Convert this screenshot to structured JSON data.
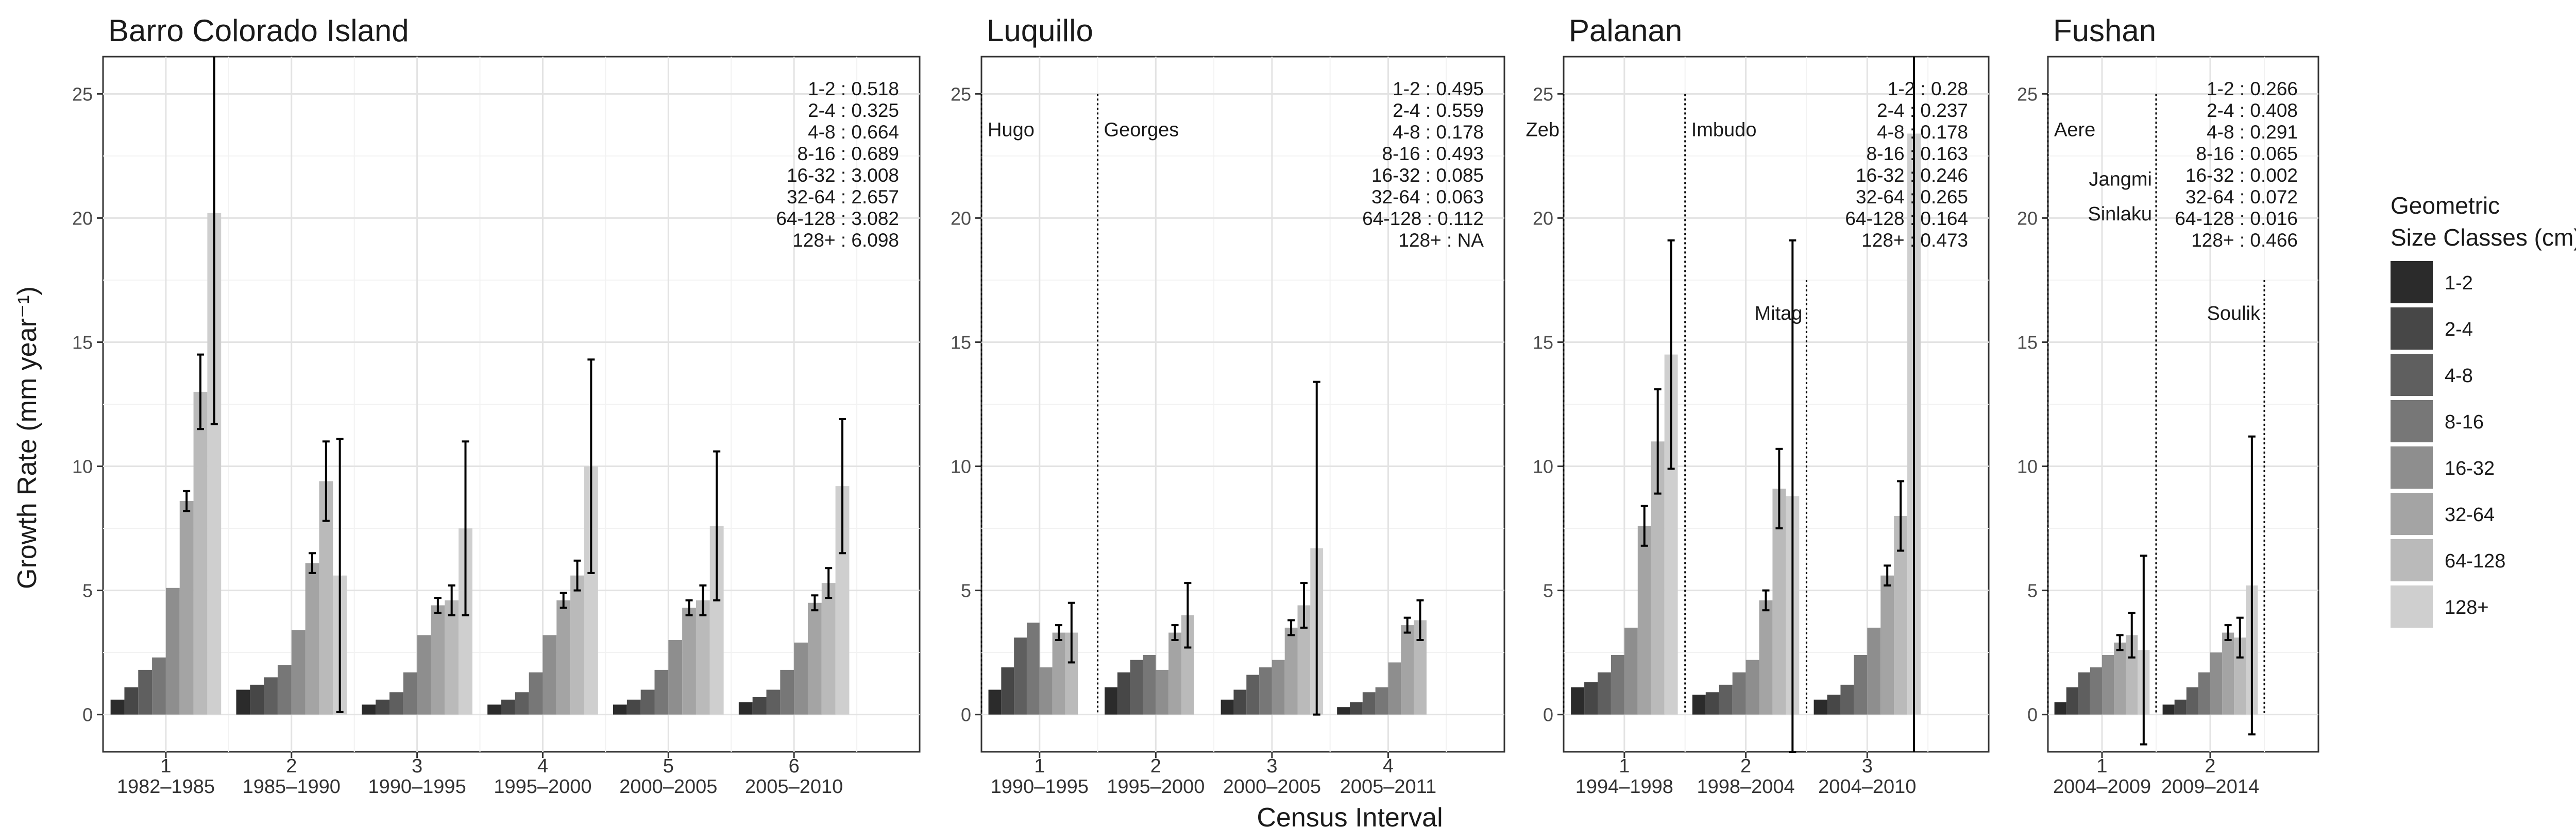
{
  "chart_data": {
    "type": "bar",
    "ylabel": "Growth Rate (mm year⁻¹)",
    "xlabel": "Census Interval",
    "ylim": [
      -1.5,
      26.5
    ],
    "yticks": [
      0,
      5,
      10,
      15,
      20,
      25
    ],
    "legend": {
      "title_line1": "Geometric",
      "title_line2": "Size Classes (cm)",
      "placement": "right",
      "classes": [
        "1-2",
        "2-4",
        "4-8",
        "8-16",
        "16-32",
        "32-64",
        "64-128",
        "128+"
      ],
      "colors": [
        "#2b2b2b",
        "#474747",
        "#5f5f5f",
        "#777777",
        "#8e8e8e",
        "#a4a4a4",
        "#bababa",
        "#cfcfcf"
      ]
    },
    "panels": [
      {
        "title": "Barro Colorado Island",
        "categories": [
          "1982–1985",
          "1985–1990",
          "1990–1995",
          "1995–2000",
          "2000–2005",
          "2005–2010"
        ],
        "index_labels": [
          "1",
          "2",
          "3",
          "4",
          "5",
          "6"
        ],
        "values": [
          [
            0.6,
            1.1,
            1.8,
            2.3,
            5.1,
            8.6,
            13.0,
            20.2
          ],
          [
            1.0,
            1.2,
            1.5,
            2.0,
            3.4,
            6.1,
            9.4,
            5.6
          ],
          [
            0.4,
            0.6,
            0.9,
            1.7,
            3.2,
            4.4,
            4.6,
            7.5
          ],
          [
            0.4,
            0.6,
            0.9,
            1.7,
            3.2,
            4.6,
            5.6,
            10.0
          ],
          [
            0.4,
            0.6,
            1.0,
            1.8,
            3.0,
            4.3,
            4.6,
            7.6
          ],
          [
            0.5,
            0.7,
            1.0,
            1.8,
            2.9,
            4.5,
            5.3,
            9.2
          ]
        ],
        "errors": [
          [
            0,
            0,
            0,
            0,
            0.2,
            0.4,
            1.5,
            8.5
          ],
          [
            0,
            0,
            0,
            0,
            0.2,
            0.4,
            1.6,
            5.5
          ],
          [
            0,
            0,
            0,
            0,
            0.1,
            0.3,
            0.6,
            3.5
          ],
          [
            0,
            0,
            0,
            0,
            0.1,
            0.3,
            0.6,
            4.3
          ],
          [
            0,
            0,
            0,
            0,
            0.1,
            0.3,
            0.6,
            3.0
          ],
          [
            0,
            0,
            0,
            0,
            0.1,
            0.3,
            0.6,
            2.7
          ]
        ],
        "annotation": [
          "1-2 : 0.518",
          "2-4 : 0.325",
          "4-8 : 0.664",
          "8-16 : 0.689",
          "16-32 : 3.008",
          "32-64 : 2.657",
          "64-128 : 3.082",
          "128+ : 6.098"
        ],
        "events": []
      },
      {
        "title": "Luquillo",
        "categories": [
          "1990–1995",
          "1995–2000",
          "2000–2005",
          "2005–2011"
        ],
        "index_labels": [
          "1",
          "2",
          "3",
          "4"
        ],
        "values": [
          [
            1.0,
            1.9,
            3.1,
            3.7,
            1.9,
            3.3,
            3.3,
            0
          ],
          [
            1.1,
            1.7,
            2.2,
            2.4,
            1.8,
            3.3,
            4.0,
            0
          ],
          [
            0.6,
            1.0,
            1.6,
            1.9,
            2.2,
            3.5,
            4.4,
            6.7
          ],
          [
            0.3,
            0.5,
            0.9,
            1.1,
            2.1,
            3.6,
            3.8,
            0
          ]
        ],
        "errors": [
          [
            0,
            0,
            0.1,
            0.1,
            0.1,
            0.3,
            1.2,
            0
          ],
          [
            0,
            0,
            0.1,
            0.1,
            0.1,
            0.3,
            1.3,
            0
          ],
          [
            0,
            0,
            0,
            0,
            0.1,
            0.3,
            0.9,
            6.7
          ],
          [
            0,
            0,
            0,
            0,
            0.1,
            0.3,
            0.8,
            0
          ]
        ],
        "annotation": [
          "1-2 : 0.495",
          "2-4 : 0.559",
          "4-8 : 0.178",
          "8-16 : 0.493",
          "16-32 : 0.085",
          "32-64 : 0.063",
          "64-128 : 0.112",
          "128+ : NA"
        ],
        "events": [
          {
            "name": "Hugo",
            "x": 0.5,
            "label_y": 23.3,
            "ymax": 25.0
          },
          {
            "name": "Georges",
            "x": 1.5,
            "label_y": 23.3,
            "ymax": 25.0
          }
        ]
      },
      {
        "title": "Palanan",
        "categories": [
          "1994–1998",
          "1998–2004",
          "2004–2010"
        ],
        "index_labels": [
          "1",
          "2",
          "3"
        ],
        "values": [
          [
            1.1,
            1.3,
            1.7,
            2.4,
            3.5,
            7.6,
            11.0,
            14.5
          ],
          [
            0.8,
            0.9,
            1.2,
            1.7,
            2.2,
            4.6,
            9.1,
            8.8
          ],
          [
            0.6,
            0.8,
            1.2,
            2.4,
            3.5,
            5.6,
            8.0,
            23.4
          ]
        ],
        "errors": [
          [
            0,
            0,
            0.1,
            0.1,
            0.2,
            0.8,
            2.1,
            4.6
          ],
          [
            0,
            0,
            0,
            0.1,
            0.1,
            0.4,
            1.6,
            10.3
          ],
          [
            0,
            0,
            0,
            0.1,
            0.1,
            0.4,
            1.4,
            25.0
          ]
        ],
        "annotation": [
          "1-2 : 0.28",
          "2-4 : 0.237",
          "4-8 : 0.178",
          "8-16 : 0.163",
          "16-32 : 0.246",
          "32-64 : 0.265",
          "64-128 : 0.164",
          "128+ : 0.473"
        ],
        "events": [
          {
            "name": "Zeb",
            "x": 0.5,
            "label_y": 23.3,
            "ymax": 25.0
          },
          {
            "name": "Imbudo",
            "x": 1.5,
            "label_y": 23.3,
            "ymax": 25.0
          },
          {
            "name": "Mitag",
            "x": 2.5,
            "label_y": 15.9,
            "ymax": 17.5
          }
        ]
      },
      {
        "title": "Fushan",
        "categories": [
          "2004–2009",
          "2009–2014"
        ],
        "index_labels": [
          "1",
          "2"
        ],
        "values": [
          [
            0.5,
            1.1,
            1.7,
            1.9,
            2.4,
            2.9,
            3.2,
            2.6
          ],
          [
            0.4,
            0.6,
            1.1,
            1.7,
            2.5,
            3.3,
            3.1,
            5.2
          ]
        ],
        "errors": [
          [
            0,
            0,
            0.1,
            0.1,
            0.1,
            0.3,
            0.9,
            3.8
          ],
          [
            0,
            0,
            0,
            0.1,
            0.1,
            0.3,
            0.8,
            6.0
          ]
        ],
        "annotation": [
          "1-2 : 0.266",
          "2-4 : 0.408",
          "4-8 : 0.291",
          "8-16 : 0.065",
          "16-32 : 0.002",
          "32-64 : 0.072",
          "64-128 : 0.016",
          "128+ : 0.466"
        ],
        "events": [
          {
            "name": "Aere",
            "x": 0.5,
            "label_y": 23.3,
            "ymax": 25.0
          },
          {
            "name": "Jangmi",
            "x": 1.5,
            "label_y": 21.3,
            "ymax": 25.0
          },
          {
            "name": "Sinlaku",
            "x": 1.5,
            "label_y": 19.9,
            "ymax": 25.0
          },
          {
            "name": "Soulik",
            "x": 2.5,
            "label_y": 15.9,
            "ymax": 17.5
          }
        ]
      }
    ]
  }
}
